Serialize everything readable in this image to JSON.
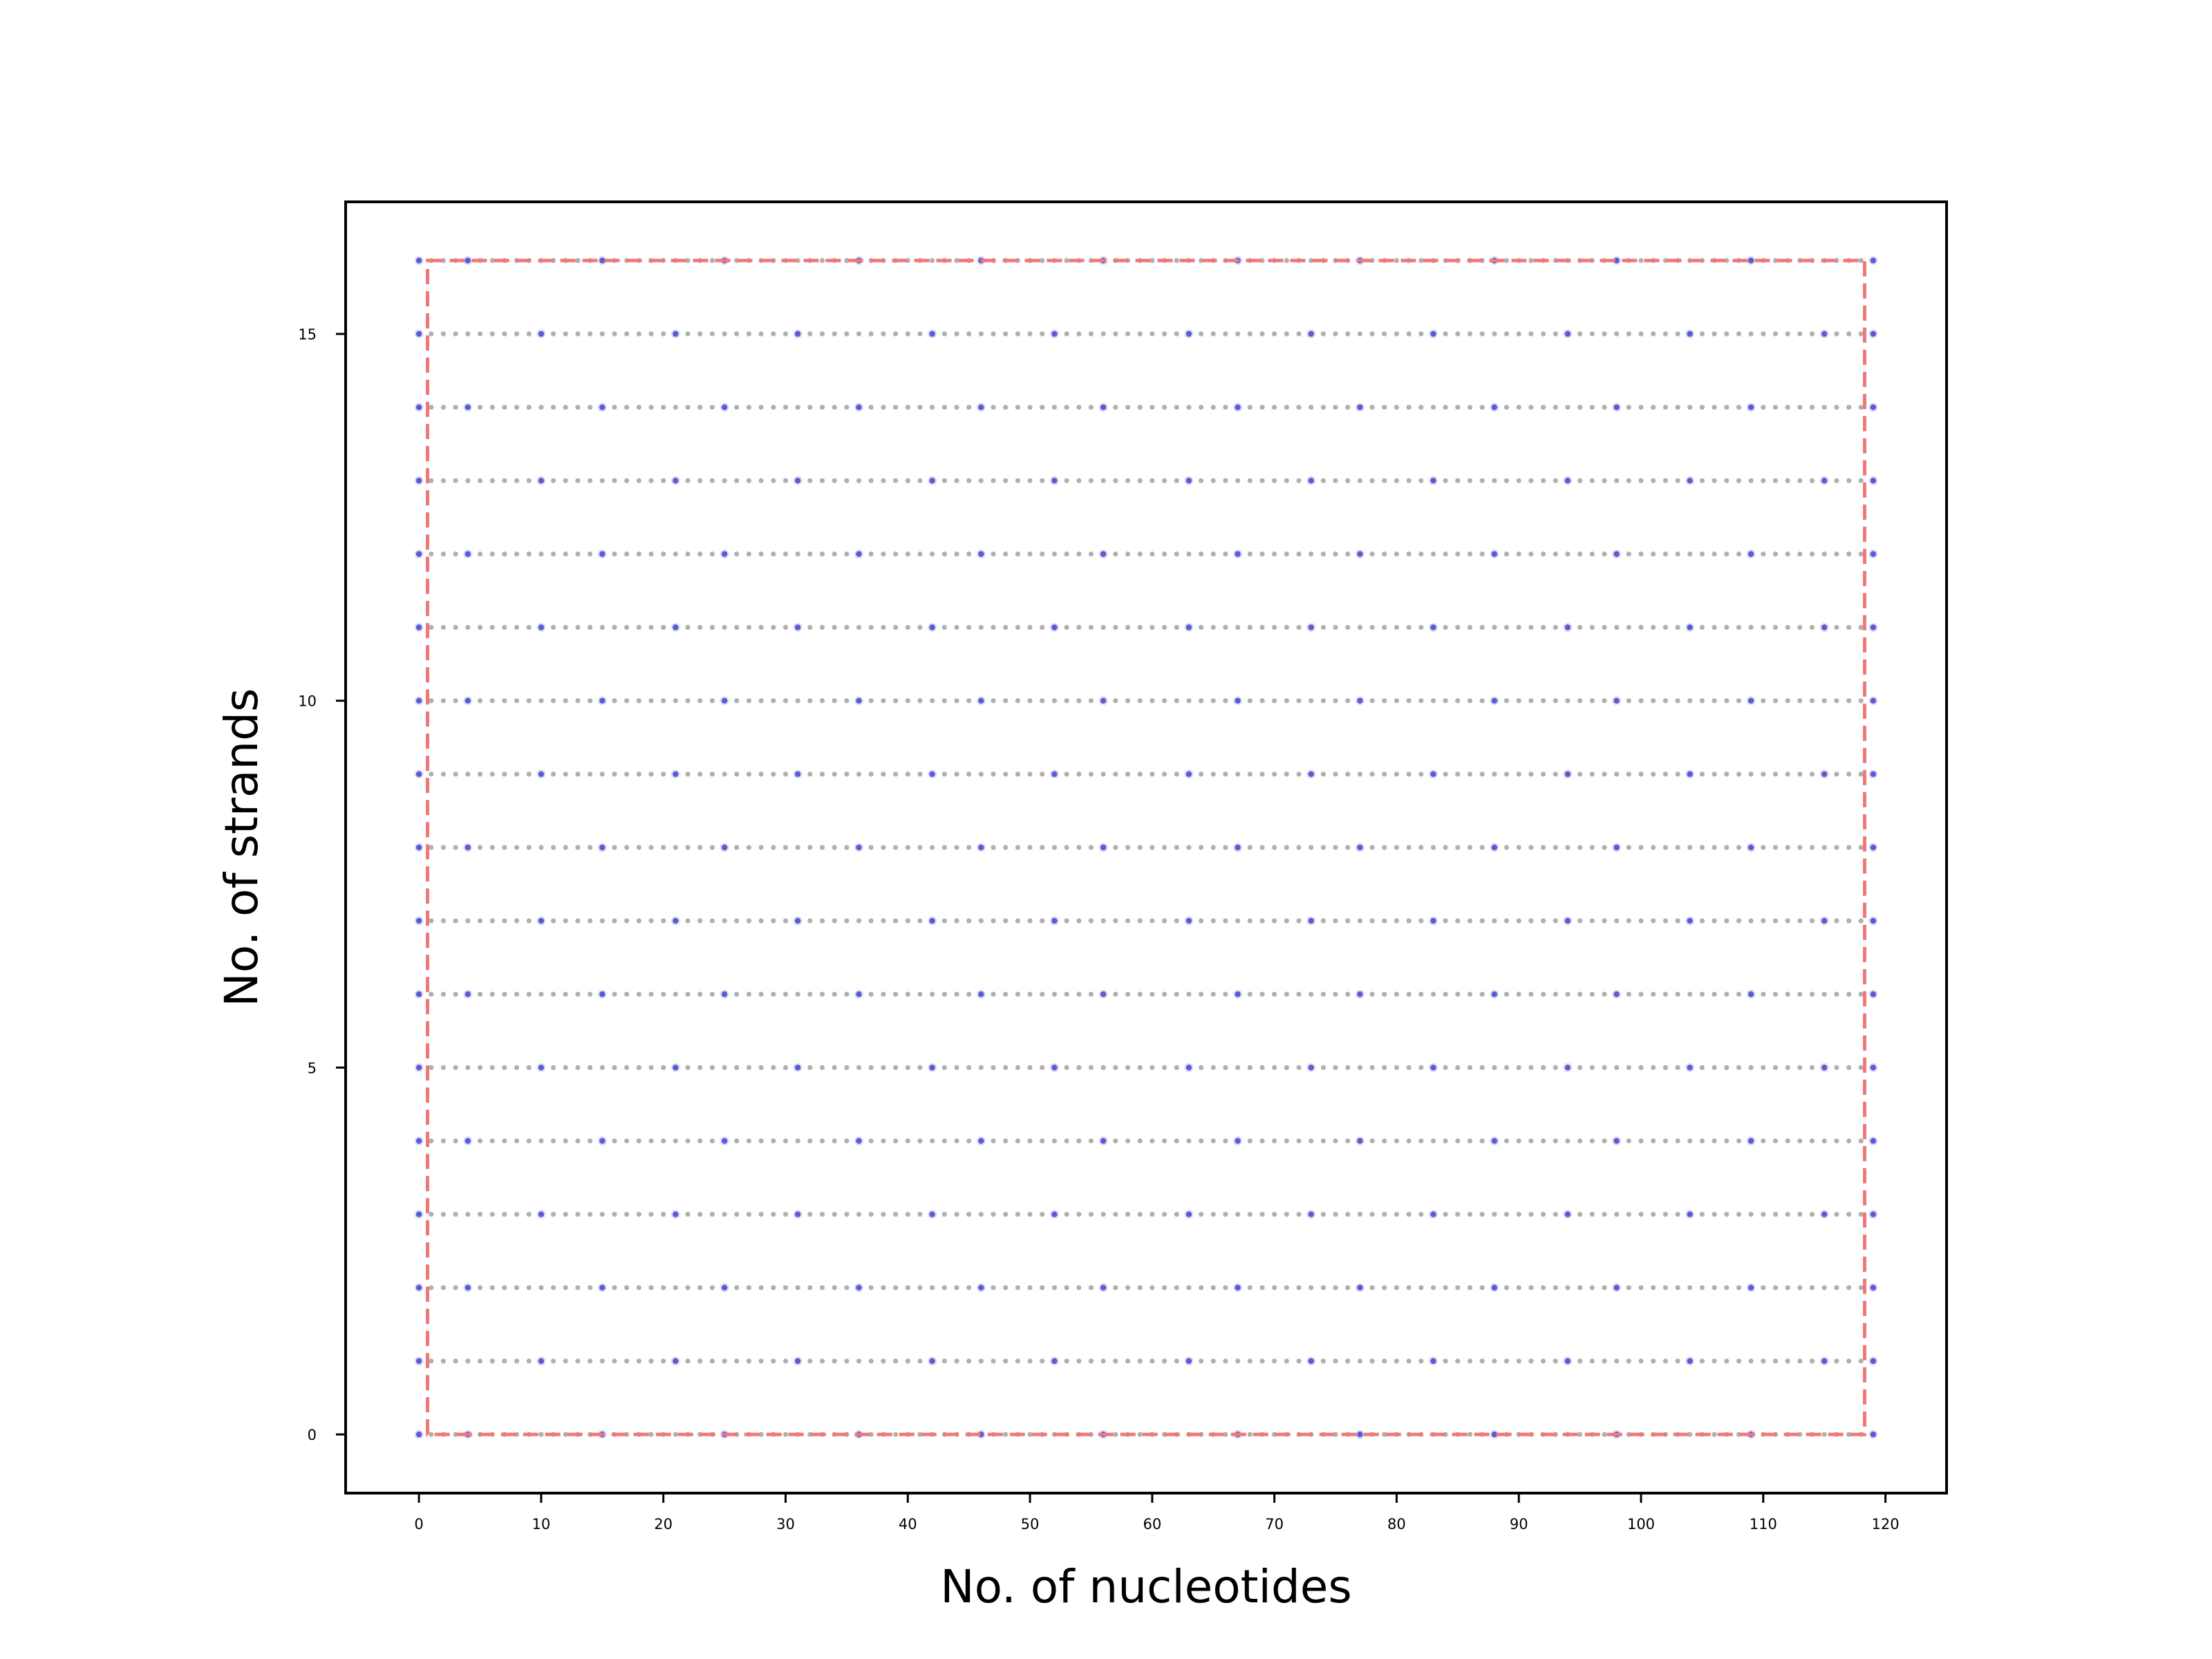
{
  "chart_data": {
    "type": "scatter",
    "title": "",
    "xlabel": "No. of nucleotides",
    "ylabel": "No. of strands",
    "xlim": [
      -6,
      125
    ],
    "ylim": [
      -0.8,
      16.8
    ],
    "xticks": [
      0,
      10,
      20,
      30,
      40,
      50,
      60,
      70,
      80,
      90,
      100,
      110,
      120
    ],
    "yticks": [
      0,
      5,
      10,
      15
    ],
    "grid": false,
    "legend": "none",
    "series": [
      {
        "role": "nucleotides",
        "x_range": [
          0,
          119
        ],
        "y_range": [
          0,
          16
        ],
        "step": 1,
        "color": "#b0b0b0"
      },
      {
        "role": "crossovers",
        "color": "#5b5bd6",
        "rows": {
          "even": [
            0,
            4,
            15,
            25,
            36,
            46,
            56,
            67,
            77,
            88,
            98,
            109,
            119
          ],
          "odd": [
            0,
            10,
            21,
            31,
            42,
            52,
            63,
            73,
            83,
            94,
            104,
            115,
            119
          ]
        }
      }
    ],
    "outline": {
      "style": "dashed",
      "color": "#f07878",
      "x": [
        0.7,
        118.3
      ],
      "y": [
        0,
        16
      ]
    }
  }
}
